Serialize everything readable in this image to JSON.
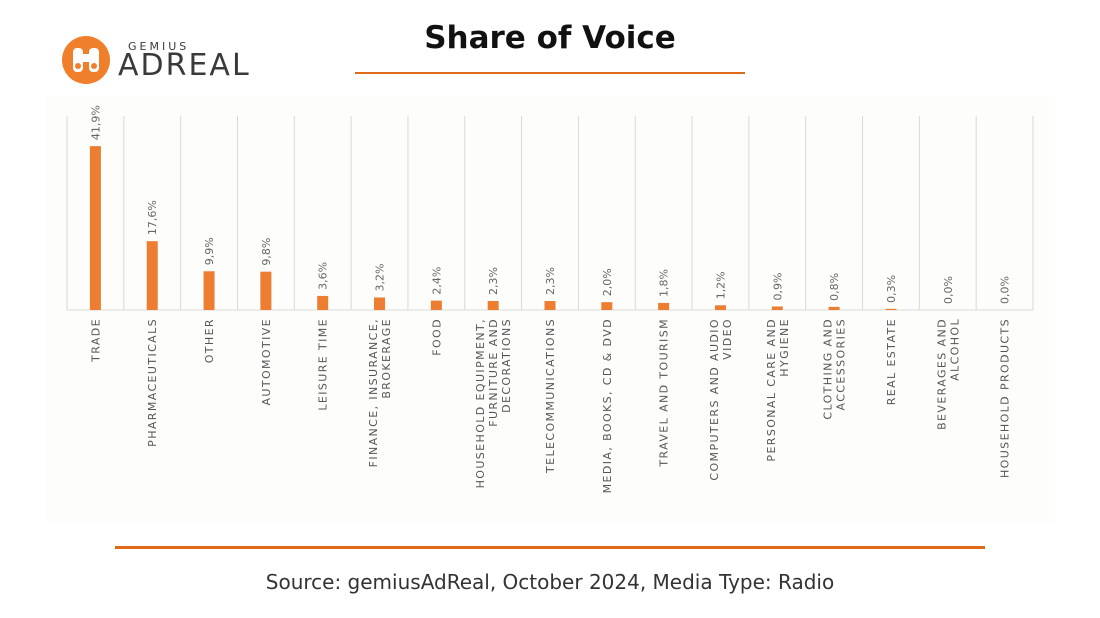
{
  "header": {
    "logo_small": "GEMIUS",
    "logo_big": "ADREAL",
    "logo_icon": "binoculars-icon",
    "title": "Share of Voice"
  },
  "footer": {
    "source": "Source: gemiusAdReal, October 2024, Media Type: Radio"
  },
  "colors": {
    "bar": "#ed7d31",
    "accent": "#e06a1a",
    "grid": "#d9d9d9"
  },
  "chart_data": {
    "type": "bar",
    "title": "",
    "xlabel": "",
    "ylabel": "",
    "ylim": [
      0,
      45
    ],
    "grid": "vertical",
    "categories": [
      "TRADE",
      "PHARMACEUTICALS",
      "OTHER",
      "AUTOMOTIVE",
      "LEISURE TIME",
      "FINANCE, INSURANCE, BROKERAGE",
      "FOOD",
      "HOUSEHOLD EQUIPMENT, FURNITURE AND DECORATIONS",
      "TELECOMMUNICATIONS",
      "MEDIA, BOOKS, CD & DVD",
      "TRAVEL AND TOURISM",
      "COMPUTERS AND AUDIO VIDEO",
      "PERSONAL CARE AND HYGIENE",
      "CLOTHING AND ACCESSORIES",
      "REAL ESTATE",
      "BEVERAGES AND ALCOHOL",
      "HOUSEHOLD PRODUCTS"
    ],
    "category_lines": [
      [
        "TRADE"
      ],
      [
        "PHARMACEUTICALS"
      ],
      [
        "OTHER"
      ],
      [
        "AUTOMOTIVE"
      ],
      [
        "LEISURE TIME"
      ],
      [
        "FINANCE, INSURANCE,",
        "BROKERAGE"
      ],
      [
        "FOOD"
      ],
      [
        "HOUSEHOLD EQUIPMENT,",
        "FURNITURE AND",
        "DECORATIONS"
      ],
      [
        "TELECOMMUNICATIONS"
      ],
      [
        "MEDIA, BOOKS, CD & DVD"
      ],
      [
        "TRAVEL AND TOURISM"
      ],
      [
        "COMPUTERS AND AUDIO",
        "VIDEO"
      ],
      [
        "PERSONAL CARE AND",
        "HYGIENE"
      ],
      [
        "CLOTHING AND",
        "ACCESSORIES"
      ],
      [
        "REAL ESTATE"
      ],
      [
        "BEVERAGES AND",
        "ALCOHOL"
      ],
      [
        "HOUSEHOLD PRODUCTS"
      ]
    ],
    "values": [
      41.9,
      17.6,
      9.9,
      9.8,
      3.6,
      3.2,
      2.4,
      2.3,
      2.3,
      2.0,
      1.8,
      1.2,
      0.9,
      0.8,
      0.3,
      0.0,
      0.0
    ],
    "labels": [
      "41,9%",
      "17,6%",
      "9,9%",
      "9,8%",
      "3,6%",
      "3,2%",
      "2,4%",
      "2,3%",
      "2,3%",
      "2,0%",
      "1,8%",
      "1,2%",
      "0,9%",
      "0,8%",
      "0,3%",
      "0,0%",
      "0,0%"
    ]
  }
}
